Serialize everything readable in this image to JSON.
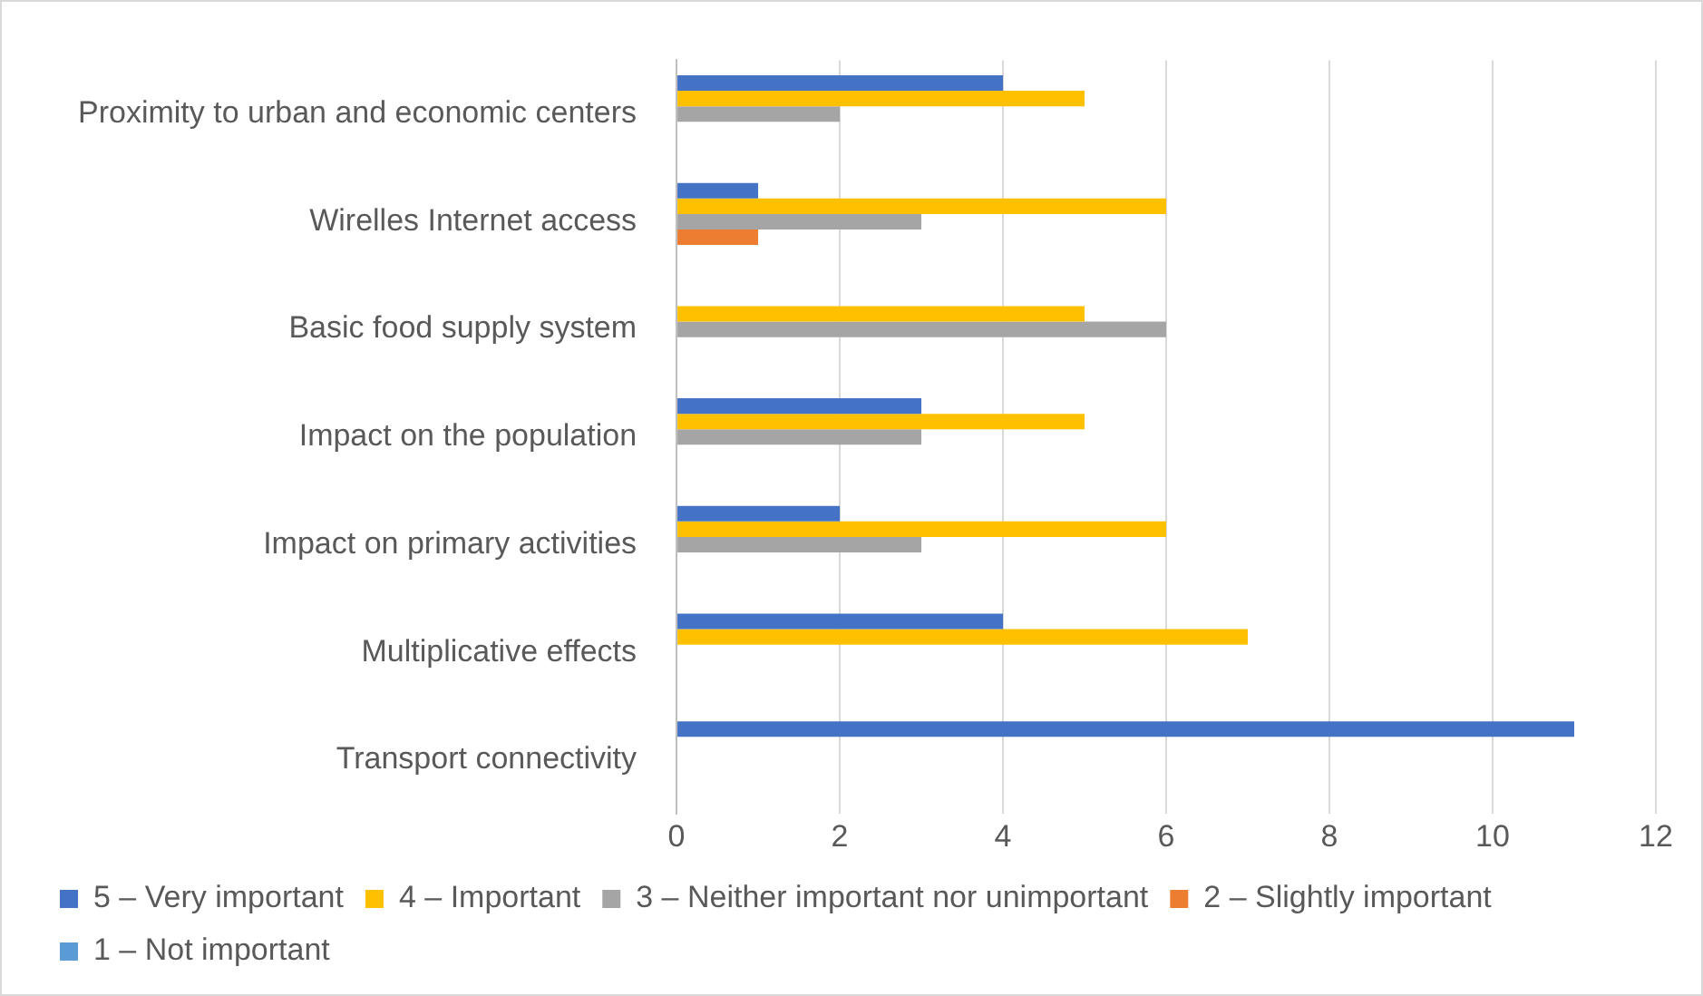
{
  "chart_data": {
    "type": "bar",
    "orientation": "horizontal",
    "categories": [
      "Proximity to urban and economic centers",
      "Wirelles Internet access",
      "Basic food supply system",
      "Impact on the population",
      "Impact on primary activities",
      "Multiplicative effects",
      "Transport connectivity"
    ],
    "series": [
      {
        "name": "5 – Very important",
        "color": "#4472c4",
        "values": [
          4,
          1,
          0,
          3,
          2,
          4,
          11
        ]
      },
      {
        "name": "4 – Important",
        "color": "#ffc000",
        "values": [
          5,
          6,
          5,
          5,
          6,
          7,
          0
        ]
      },
      {
        "name": "3 – Neither important nor unimportant",
        "color": "#a5a5a5",
        "values": [
          2,
          3,
          6,
          3,
          3,
          0,
          0
        ]
      },
      {
        "name": "2 – Slightly important",
        "color": "#ed7d31",
        "values": [
          0,
          1,
          0,
          0,
          0,
          0,
          0
        ]
      },
      {
        "name": "1 – Not important",
        "color": "#5b9bd5",
        "values": [
          0,
          0,
          0,
          0,
          0,
          0,
          0
        ]
      }
    ],
    "xlim": [
      0,
      12
    ],
    "xticks": [
      0,
      2,
      4,
      6,
      8,
      10,
      12
    ],
    "grid": "x",
    "legend": "bottom"
  }
}
